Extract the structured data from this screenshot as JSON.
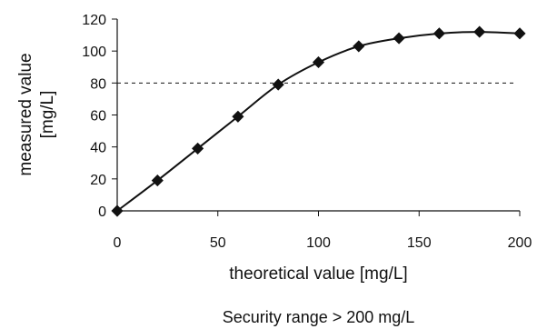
{
  "chart_data": {
    "type": "line",
    "xlabel": "theoretical value [mg/L]",
    "ylabel": [
      "measured value",
      "[mg/L]"
    ],
    "caption": "Security range > 200 mg/L",
    "x": [
      0,
      20,
      40,
      60,
      80,
      100,
      120,
      140,
      160,
      180,
      200
    ],
    "series": [
      {
        "values": [
          0,
          19,
          39,
          59,
          79,
          93,
          103,
          108,
          111,
          112,
          111
        ]
      }
    ],
    "reference_line": {
      "y": 80,
      "style": "dashed"
    },
    "xlim": [
      0,
      200
    ],
    "ylim": [
      0,
      120
    ],
    "xticks": [
      0,
      50,
      100,
      150,
      200
    ],
    "yticks": [
      0,
      20,
      40,
      60,
      80,
      100,
      120
    ],
    "grid": false,
    "legend": "none",
    "colors": {
      "line": "#111111",
      "marker": "#111111",
      "axis": "#111111"
    }
  }
}
